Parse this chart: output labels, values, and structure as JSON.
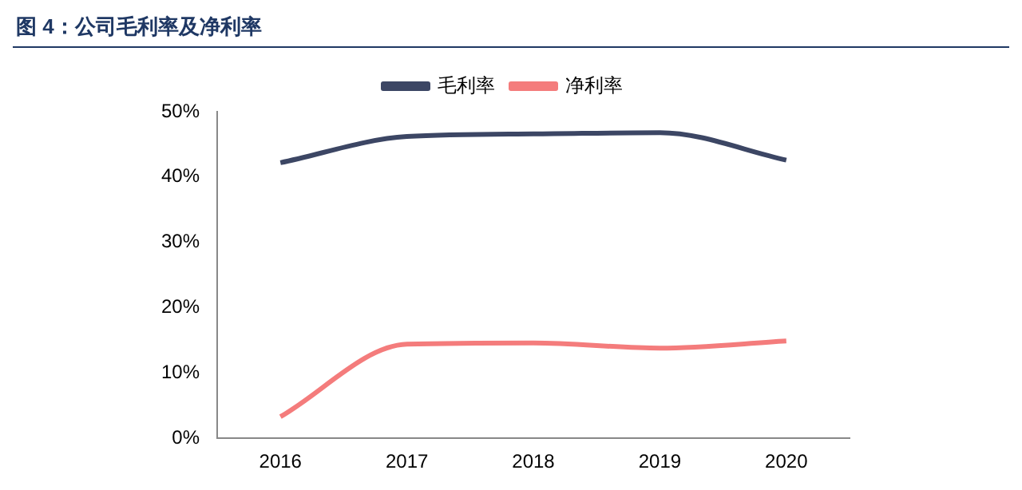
{
  "chart_data": {
    "type": "line",
    "title": "图 4：公司毛利率及净利率",
    "categories": [
      "2016",
      "2017",
      "2018",
      "2019",
      "2020"
    ],
    "series": [
      {
        "name": "毛利率",
        "color": "#3c4664",
        "values": [
          42.2,
          46.2,
          46.6,
          46.8,
          42.6
        ]
      },
      {
        "name": "净利率",
        "color": "#f47c7c",
        "values": [
          3.3,
          14.4,
          14.6,
          13.8,
          14.9
        ]
      }
    ],
    "ylim": [
      0,
      50
    ],
    "yticks": [
      {
        "value": 0,
        "label": "0%"
      },
      {
        "value": 10,
        "label": "10%"
      },
      {
        "value": 20,
        "label": "20%"
      },
      {
        "value": 30,
        "label": "30%"
      },
      {
        "value": 40,
        "label": "40%"
      },
      {
        "value": 50,
        "label": "50%"
      }
    ],
    "grid": false,
    "legend": "top",
    "marker": "none"
  }
}
